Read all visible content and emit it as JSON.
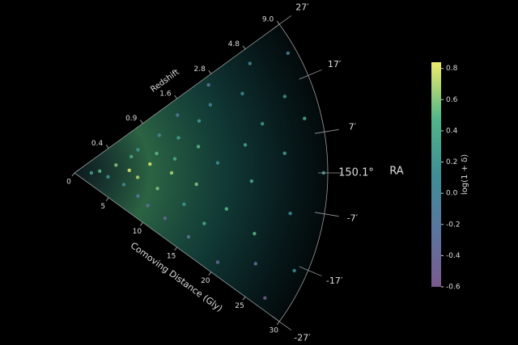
{
  "chart_data": {
    "type": "wedge-scatter",
    "x_label": "Comoving Distance (Gly)",
    "redshift_label": "Redshift",
    "angle_label": "RA",
    "colorbar_label": "log(1 + δ)",
    "xlim": [
      0,
      30
    ],
    "xticks": [
      0,
      5,
      10,
      15,
      20,
      25,
      30
    ],
    "redshift_ticks": [
      {
        "value": 5,
        "label": "0.4"
      },
      {
        "value": 10,
        "label": "0.9"
      },
      {
        "value": 15,
        "label": "1.6"
      },
      {
        "value": 20,
        "label": "2.8"
      },
      {
        "value": 25,
        "label": "4.8"
      },
      {
        "value": 30,
        "label": "9.0"
      }
    ],
    "ylim": [
      -27,
      27
    ],
    "yticks": [
      {
        "value": 27,
        "label": "27′"
      },
      {
        "value": 17,
        "label": "17′"
      },
      {
        "value": 7,
        "label": "7′"
      },
      {
        "value": 0,
        "label": "150.1°"
      },
      {
        "value": -7,
        "label": "-7′"
      },
      {
        "value": -17,
        "label": "-17′"
      },
      {
        "value": -27,
        "label": "-27′"
      }
    ],
    "clim": [
      -0.6,
      0.84
    ],
    "cticks": [
      0.8,
      0.6,
      0.4,
      0.2,
      0.0,
      -0.2,
      -0.4,
      -0.6
    ],
    "x": [
      2,
      3,
      4,
      5,
      6,
      6.5,
      7,
      7.5,
      8,
      8,
      9,
      9.5,
      10,
      10,
      11,
      11.5,
      12,
      12,
      13,
      13.5,
      14,
      14.5,
      15,
      15.5,
      16,
      16.5,
      17,
      18,
      18.5,
      19,
      20,
      20.5,
      21,
      22,
      22.5,
      23,
      24,
      24.5,
      25,
      26,
      26.5,
      27,
      28,
      28.5,
      29,
      29.5
    ],
    "y": [
      0,
      3,
      -5,
      8,
      -10,
      2,
      12,
      -3,
      15,
      -15,
      5,
      -18,
      10,
      -8,
      18,
      0,
      -20,
      6,
      14,
      -12,
      22,
      -4,
      9,
      -22,
      17,
      -16,
      3,
      20,
      -10,
      25,
      -24,
      7,
      -2,
      19,
      -14,
      11,
      -20,
      24,
      4,
      -8,
      15,
      -25,
      10,
      -18,
      22,
      0
    ],
    "values": [
      0.3,
      0.5,
      0.2,
      0.6,
      0.1,
      0.8,
      0.4,
      0.7,
      0.2,
      -0.1,
      0.8,
      -0.3,
      0.5,
      0.6,
      0.0,
      0.7,
      -0.4,
      0.4,
      0.3,
      0.2,
      -0.2,
      0.6,
      0.5,
      -0.3,
      0.2,
      0.4,
      0.1,
      0.0,
      0.5,
      -0.2,
      -0.4,
      0.3,
      0.4,
      0.1,
      0.5,
      0.2,
      -0.3,
      0.0,
      0.3,
      0.1,
      0.2,
      -0.5,
      0.4,
      0.1,
      0.0,
      0.3
    ]
  }
}
